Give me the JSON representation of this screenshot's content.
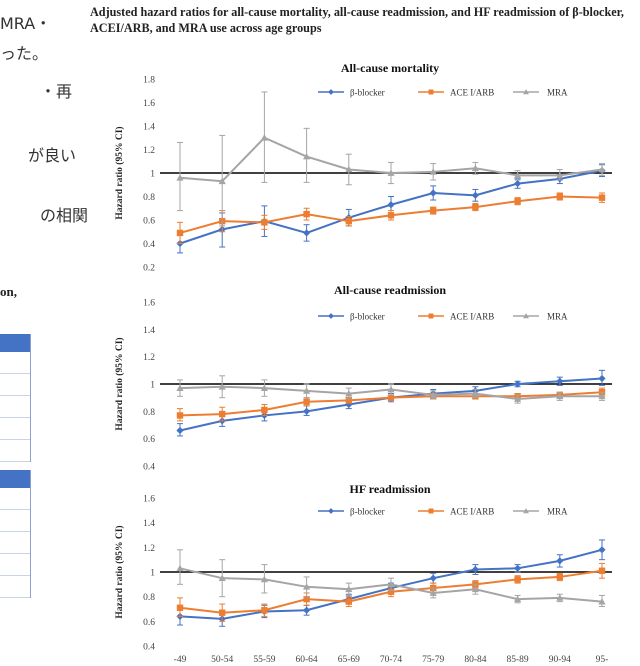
{
  "background_text": {
    "jp_lines": [
      "MRA・",
      "った。",
      "・再",
      "が良い",
      "の相関"
    ],
    "section_fragment": "on,"
  },
  "figure_title": "Adjusted hazard ratios for all-cause mortality, all-cause readmission, and HF readmission of β-blocker, ACEI/ARB, and MRA use across age groups",
  "colors": {
    "beta_blocker": "#4472c4",
    "acei_arb": "#ed7d31",
    "mra": "#a5a5a5",
    "reference_line": "#000000",
    "table_header": "#4472c4"
  },
  "chart_data": [
    {
      "type": "line",
      "title": "All-cause mortality",
      "ylabel": "Hazard ratio (95% CI)",
      "x": [
        "-49",
        "50-54",
        "55-59",
        "60-64",
        "65-69",
        "70-74",
        "75-79",
        "80-84",
        "85-89",
        "90-94",
        "95-"
      ],
      "ylim": [
        0.2,
        1.8
      ],
      "yticks": [
        "0.2",
        "0.4",
        "0.6",
        "0.8",
        "1",
        "1.2",
        "1.4",
        "1.6",
        "1.8"
      ],
      "reference_line": 1,
      "legend_position": "top",
      "series": [
        {
          "name": "β-blocker",
          "color": "#4472c4",
          "marker": "diamond",
          "values": [
            0.4,
            0.52,
            0.59,
            0.49,
            0.62,
            0.73,
            0.83,
            0.81,
            0.91,
            0.95,
            1.02
          ],
          "err_low": [
            0.32,
            0.37,
            0.46,
            0.42,
            0.55,
            0.66,
            0.77,
            0.76,
            0.87,
            0.91,
            0.97
          ],
          "err_high": [
            0.48,
            0.66,
            0.72,
            0.56,
            0.69,
            0.8,
            0.89,
            0.86,
            0.95,
            0.99,
            1.07
          ]
        },
        {
          "name": "ACE I/ARB",
          "color": "#ed7d31",
          "marker": "square",
          "values": [
            0.49,
            0.59,
            0.58,
            0.65,
            0.59,
            0.64,
            0.68,
            0.71,
            0.76,
            0.8,
            0.79
          ],
          "err_low": [
            0.4,
            0.5,
            0.52,
            0.6,
            0.55,
            0.6,
            0.65,
            0.68,
            0.73,
            0.77,
            0.75
          ],
          "err_high": [
            0.58,
            0.68,
            0.64,
            0.7,
            0.63,
            0.68,
            0.71,
            0.74,
            0.79,
            0.83,
            0.83
          ]
        },
        {
          "name": "MRA",
          "color": "#a5a5a5",
          "marker": "triangle",
          "values": [
            0.96,
            0.93,
            1.3,
            1.14,
            1.03,
            1.0,
            1.01,
            1.04,
            0.98,
            0.98,
            1.03
          ],
          "err_low": [
            0.68,
            0.55,
            0.92,
            0.92,
            0.9,
            0.91,
            0.94,
            0.99,
            0.94,
            0.94,
            0.98
          ],
          "err_high": [
            1.26,
            1.32,
            1.69,
            1.38,
            1.16,
            1.09,
            1.08,
            1.09,
            1.02,
            1.03,
            1.08
          ]
        }
      ]
    },
    {
      "type": "line",
      "title": "All-cause readmission",
      "ylabel": "Hazard ratio (95% CI)",
      "x": [
        "-49",
        "50-54",
        "55-59",
        "60-64",
        "65-69",
        "70-74",
        "75-79",
        "80-84",
        "85-89",
        "90-94",
        "95-"
      ],
      "ylim": [
        0.4,
        1.6
      ],
      "yticks": [
        "0.4",
        "0.6",
        "0.8",
        "1",
        "1.2",
        "1.4",
        "1.6"
      ],
      "reference_line": 1,
      "legend_position": "top",
      "series": [
        {
          "name": "β-blocker",
          "color": "#4472c4",
          "marker": "diamond",
          "values": [
            0.66,
            0.73,
            0.77,
            0.8,
            0.85,
            0.9,
            0.93,
            0.95,
            1.0,
            1.02,
            1.04
          ],
          "err_low": [
            0.62,
            0.69,
            0.73,
            0.77,
            0.82,
            0.87,
            0.91,
            0.93,
            0.98,
            0.99,
            0.99
          ],
          "err_high": [
            0.71,
            0.78,
            0.81,
            0.84,
            0.88,
            0.93,
            0.96,
            0.98,
            1.02,
            1.05,
            1.1
          ]
        },
        {
          "name": "ACE I/ARB",
          "color": "#ed7d31",
          "marker": "square",
          "values": [
            0.77,
            0.78,
            0.81,
            0.87,
            0.88,
            0.9,
            0.91,
            0.91,
            0.91,
            0.92,
            0.94
          ],
          "err_low": [
            0.73,
            0.73,
            0.77,
            0.84,
            0.86,
            0.88,
            0.89,
            0.89,
            0.89,
            0.9,
            0.91
          ],
          "err_high": [
            0.82,
            0.83,
            0.85,
            0.9,
            0.9,
            0.92,
            0.93,
            0.93,
            0.93,
            0.94,
            0.97
          ]
        },
        {
          "name": "MRA",
          "color": "#a5a5a5",
          "marker": "triangle",
          "values": [
            0.97,
            0.98,
            0.97,
            0.95,
            0.93,
            0.96,
            0.92,
            0.93,
            0.89,
            0.91,
            0.91
          ],
          "err_low": [
            0.91,
            0.9,
            0.91,
            0.9,
            0.89,
            0.92,
            0.89,
            0.9,
            0.86,
            0.88,
            0.88
          ],
          "err_high": [
            1.03,
            1.06,
            1.03,
            1.0,
            0.97,
            1.0,
            0.95,
            0.96,
            0.92,
            0.94,
            0.94
          ]
        }
      ]
    },
    {
      "type": "line",
      "title": "HF readmission",
      "ylabel": "Hazard ratio (95% CI)",
      "x": [
        "-49",
        "50-54",
        "55-59",
        "60-64",
        "65-69",
        "70-74",
        "75-79",
        "80-84",
        "85-89",
        "90-94",
        "95-"
      ],
      "ylim": [
        0.4,
        1.6
      ],
      "yticks": [
        "0.4",
        "0.6",
        "0.8",
        "1",
        "1.2",
        "1.4",
        "1.6"
      ],
      "reference_line": 1,
      "legend_position": "top",
      "series": [
        {
          "name": "β-blocker",
          "color": "#4472c4",
          "marker": "diamond",
          "values": [
            0.64,
            0.62,
            0.68,
            0.69,
            0.78,
            0.87,
            0.95,
            1.02,
            1.03,
            1.09,
            1.18
          ],
          "err_low": [
            0.57,
            0.56,
            0.63,
            0.65,
            0.74,
            0.83,
            0.91,
            0.98,
            1.0,
            1.04,
            1.1
          ],
          "err_high": [
            0.71,
            0.68,
            0.73,
            0.73,
            0.82,
            0.91,
            0.99,
            1.06,
            1.06,
            1.14,
            1.26
          ]
        },
        {
          "name": "ACE I/ARB",
          "color": "#ed7d31",
          "marker": "square",
          "values": [
            0.71,
            0.67,
            0.69,
            0.78,
            0.76,
            0.84,
            0.87,
            0.9,
            0.94,
            0.96,
            1.01
          ],
          "err_low": [
            0.64,
            0.6,
            0.64,
            0.73,
            0.72,
            0.8,
            0.83,
            0.87,
            0.91,
            0.93,
            0.95
          ],
          "err_high": [
            0.79,
            0.74,
            0.74,
            0.83,
            0.8,
            0.88,
            0.91,
            0.93,
            0.97,
            0.99,
            1.07
          ]
        },
        {
          "name": "MRA",
          "color": "#a5a5a5",
          "marker": "triangle",
          "values": [
            1.03,
            0.95,
            0.94,
            0.88,
            0.86,
            0.9,
            0.83,
            0.86,
            0.78,
            0.79,
            0.76
          ],
          "err_low": [
            0.9,
            0.8,
            0.83,
            0.8,
            0.81,
            0.85,
            0.79,
            0.82,
            0.75,
            0.76,
            0.72
          ],
          "err_high": [
            1.18,
            1.1,
            1.06,
            0.96,
            0.91,
            0.95,
            0.87,
            0.9,
            0.81,
            0.82,
            0.81
          ]
        }
      ]
    }
  ]
}
